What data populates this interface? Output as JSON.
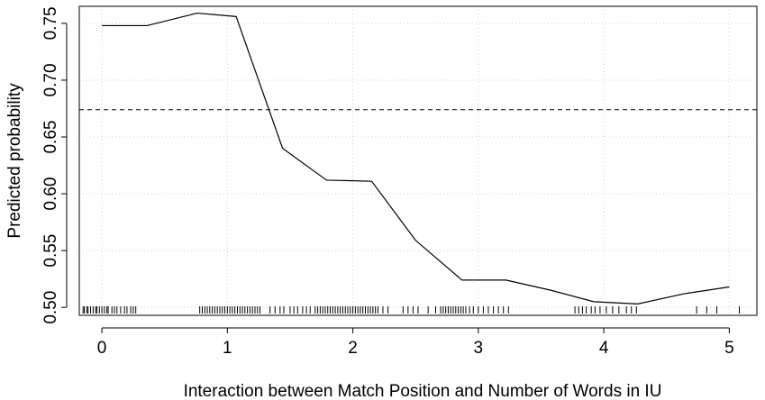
{
  "chart_data": {
    "type": "line",
    "xlabel": "Interaction between Match Position and Number of Words in IU",
    "ylabel": "Predicted probability",
    "xlim": [
      -0.18,
      5.22
    ],
    "ylim": [
      0.493,
      0.765
    ],
    "xticks": [
      0,
      1,
      2,
      3,
      4,
      5
    ],
    "yticks": [
      0.5,
      0.55,
      0.6,
      0.65,
      0.7,
      0.75
    ],
    "xtick_labels": [
      "0",
      "1",
      "2",
      "3",
      "4",
      "5"
    ],
    "ytick_labels": [
      "0.50",
      "0.55",
      "0.60",
      "0.65",
      "0.70",
      "0.75"
    ],
    "grid": true,
    "series": [
      {
        "x": [
          0.0,
          0.36,
          0.76,
          1.07,
          1.44,
          1.79,
          2.15,
          2.5,
          2.87,
          3.22,
          3.58,
          3.92,
          4.27,
          4.64,
          5.0
        ],
        "y": [
          0.748,
          0.748,
          0.759,
          0.756,
          0.64,
          0.612,
          0.611,
          0.559,
          0.524,
          0.524,
          0.515,
          0.505,
          0.503,
          0.512,
          0.518
        ]
      }
    ],
    "reference_line": {
      "y": 0.674,
      "style": "dashed"
    },
    "rug": [
      -0.15,
      -0.14,
      -0.12,
      -0.11,
      -0.09,
      -0.07,
      -0.05,
      -0.04,
      -0.02,
      0.0,
      0.02,
      0.04,
      0.05,
      0.08,
      0.1,
      0.12,
      0.15,
      0.18,
      0.2,
      0.23,
      0.25,
      0.27,
      0.78,
      0.8,
      0.82,
      0.84,
      0.86,
      0.88,
      0.9,
      0.92,
      0.94,
      0.96,
      0.98,
      1.0,
      1.02,
      1.04,
      1.06,
      1.08,
      1.1,
      1.12,
      1.14,
      1.16,
      1.18,
      1.2,
      1.22,
      1.24,
      1.26,
      1.34,
      1.38,
      1.42,
      1.45,
      1.5,
      1.53,
      1.56,
      1.6,
      1.63,
      1.66,
      1.7,
      1.72,
      1.74,
      1.76,
      1.78,
      1.8,
      1.82,
      1.84,
      1.86,
      1.88,
      1.9,
      1.92,
      1.94,
      1.96,
      1.98,
      2.0,
      2.02,
      2.04,
      2.06,
      2.08,
      2.1,
      2.12,
      2.14,
      2.16,
      2.18,
      2.2,
      2.24,
      2.28,
      2.4,
      2.44,
      2.48,
      2.52,
      2.6,
      2.66,
      2.7,
      2.72,
      2.74,
      2.76,
      2.78,
      2.8,
      2.82,
      2.84,
      2.86,
      2.88,
      2.9,
      2.93,
      2.96,
      3.0,
      3.04,
      3.08,
      3.12,
      3.16,
      3.2,
      3.24,
      3.77,
      3.8,
      3.83,
      3.86,
      3.9,
      3.93,
      3.97,
      4.02,
      4.07,
      4.12,
      4.18,
      4.22,
      4.26,
      4.74,
      4.82,
      4.9,
      5.08
    ]
  }
}
